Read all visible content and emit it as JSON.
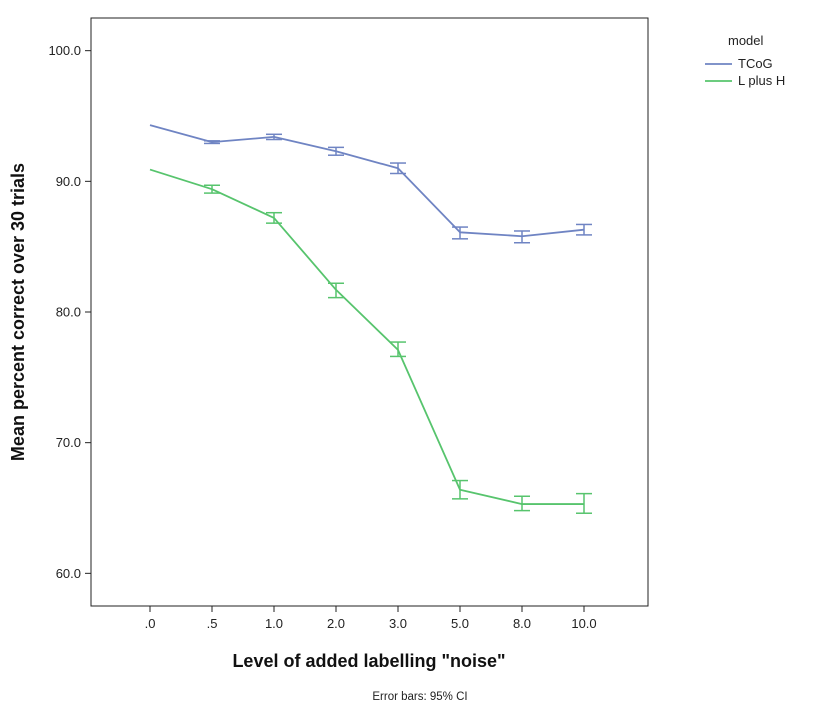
{
  "chart_data": {
    "type": "line",
    "title": "",
    "xlabel": "Level of added labelling \"noise\"",
    "ylabel": "Mean percent correct over 30 trials",
    "categories": [
      ".0",
      ".5",
      "1.0",
      "2.0",
      "3.0",
      "5.0",
      "8.0",
      "10.0"
    ],
    "ylim": [
      57.5,
      102.5
    ],
    "yticks": [
      60.0,
      70.0,
      80.0,
      90.0,
      100.0
    ],
    "ytick_labels": [
      "60.0",
      "70.0",
      "80.0",
      "90.0",
      "100.0"
    ],
    "grid": false,
    "legend": {
      "title": "model",
      "position": "top-right"
    },
    "note": "Error bars: 95% CI",
    "series": [
      {
        "name": "TCoG",
        "color": "#6f84c3",
        "values": [
          94.3,
          93.0,
          93.4,
          92.3,
          91.0,
          86.1,
          85.8,
          86.3
        ],
        "ci_low": [
          null,
          92.9,
          93.2,
          92.0,
          90.6,
          85.6,
          85.3,
          85.9
        ],
        "ci_high": [
          null,
          93.1,
          93.6,
          92.6,
          91.4,
          86.5,
          86.2,
          86.7
        ]
      },
      {
        "name": "L plus H",
        "color": "#57c46d",
        "values": [
          90.9,
          89.4,
          87.2,
          81.7,
          77.1,
          66.4,
          65.3,
          65.3
        ],
        "ci_low": [
          null,
          89.1,
          86.8,
          81.1,
          76.6,
          65.7,
          64.8,
          64.6
        ],
        "ci_high": [
          null,
          89.7,
          87.6,
          82.2,
          77.7,
          67.1,
          65.9,
          66.1
        ]
      }
    ]
  }
}
